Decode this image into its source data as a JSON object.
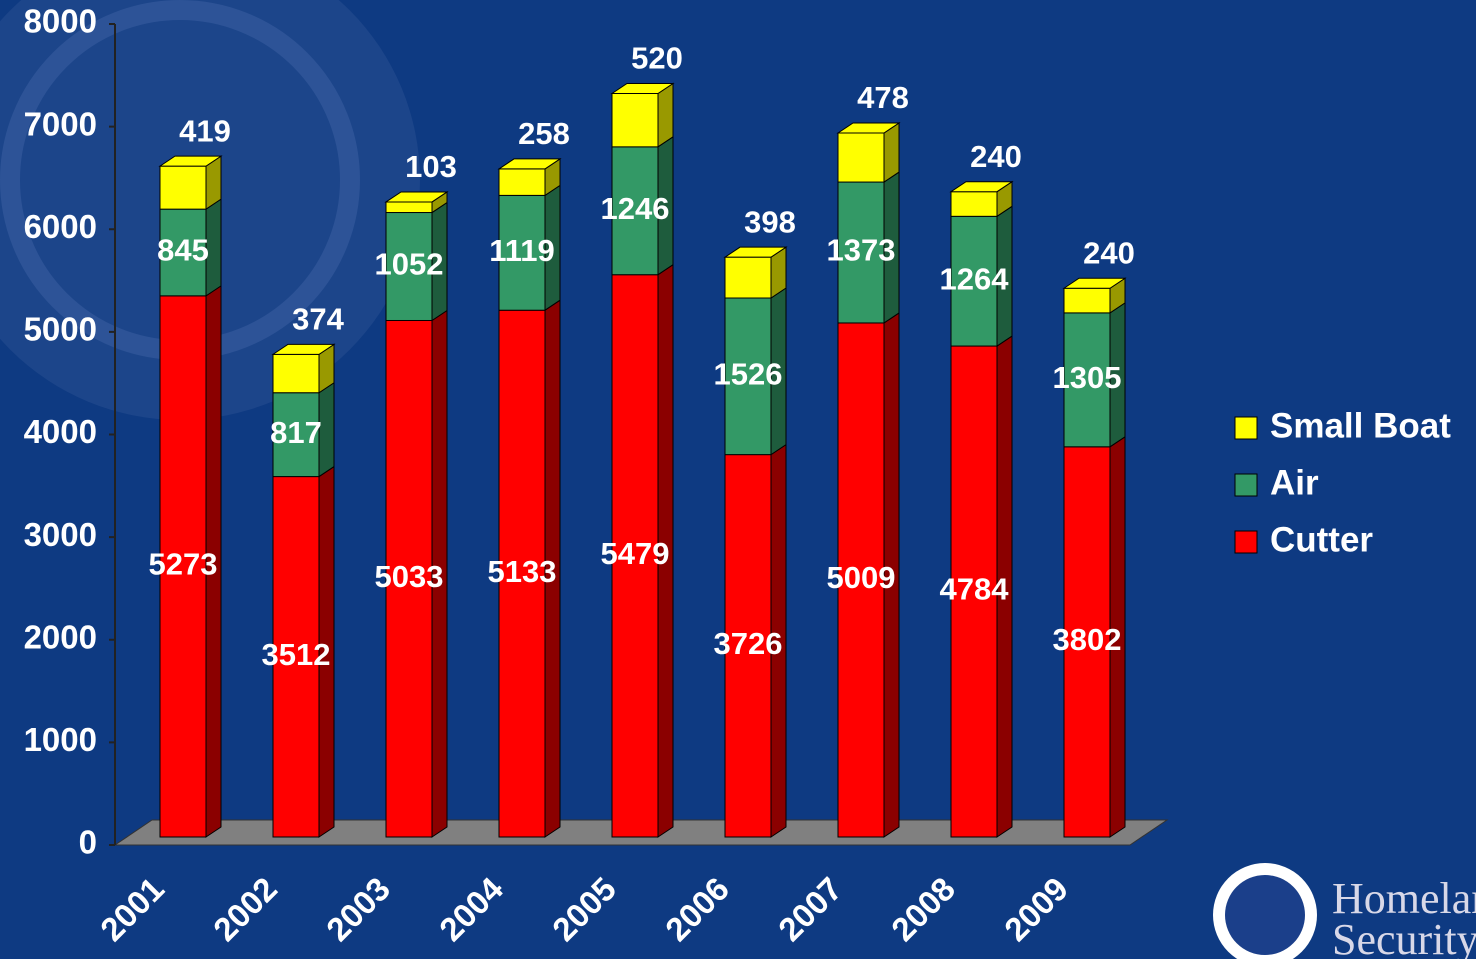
{
  "chart_data": {
    "type": "bar3d_stacked",
    "categories": [
      "2001",
      "2002",
      "2003",
      "2004",
      "2005",
      "2006",
      "2007",
      "2008",
      "2009"
    ],
    "series": [
      {
        "name": "Cutter",
        "color": "#ff0000",
        "side_color": "#8b0000",
        "values": [
          5273,
          3512,
          5033,
          5133,
          5479,
          3726,
          5009,
          4784,
          3802
        ]
      },
      {
        "name": "Air",
        "color": "#339966",
        "side_color": "#1e5c3d",
        "values": [
          845,
          817,
          1052,
          1119,
          1246,
          1526,
          1373,
          1264,
          1305
        ]
      },
      {
        "name": "Small Boat",
        "color": "#ffff00",
        "side_color": "#999900",
        "values": [
          419,
          374,
          103,
          258,
          520,
          398,
          478,
          240,
          240
        ]
      }
    ],
    "ylim": [
      0,
      8000
    ],
    "yticks": [
      0,
      1000,
      2000,
      3000,
      4000,
      5000,
      6000,
      7000,
      8000
    ],
    "legend": "right",
    "logo_text": [
      "Homeland",
      "Security"
    ]
  }
}
